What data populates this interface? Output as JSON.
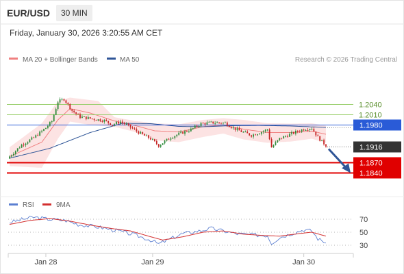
{
  "header": {
    "symbol": "EUR/USD",
    "timeframe": "30 MIN",
    "datetime": "Friday, January 30, 2026 3:20:55 AM CET"
  },
  "legend": {
    "ma20_label": "MA 20 + Bollinger Bands",
    "ma50_label": "MA 50",
    "attribution": "Research © 2026 Trading Central",
    "rsi_label": "RSI",
    "rsi_ma_label": "9MA"
  },
  "colors": {
    "up": "#2e8b3a",
    "down": "#c62828",
    "ma20": "#f08080",
    "band_fill": "#fbdada",
    "ma50": "#2f5597",
    "resistance": "#9bcf6e",
    "pivot": "#2a5bd7",
    "support": "#e00000",
    "price": "#333333",
    "arrow": "#2f5597",
    "rsi": "#5b7fd1",
    "rsi_ma": "#d32f2f"
  },
  "chart_data": [
    {
      "type": "candlestick",
      "title": "",
      "x_labels": [
        "Jan 28",
        "Jan 29",
        "Jan 30"
      ],
      "ylim": [
        1.1795,
        1.2145
      ],
      "current_price": 1.1916,
      "levels": [
        {
          "value": 1.204,
          "label": "1.2040",
          "kind": "resistance"
        },
        {
          "value": 1.201,
          "label": "1.2010",
          "kind": "resistance"
        },
        {
          "value": 1.198,
          "label": "1.1980",
          "kind": "pivot"
        },
        {
          "value": 1.1916,
          "label": "1.1916",
          "kind": "current"
        },
        {
          "value": 1.187,
          "label": "1.1870",
          "kind": "support"
        },
        {
          "value": 1.184,
          "label": "1.1840",
          "kind": "support"
        }
      ],
      "forecast_arrow": {
        "from": 1.1916,
        "to": 1.1844
      },
      "close_anchors": [
        [
          0,
          1.1888
        ],
        [
          6,
          1.1922
        ],
        [
          12,
          1.1943
        ],
        [
          18,
          1.1972
        ],
        [
          21,
          1.1991
        ],
        [
          24,
          1.2048
        ],
        [
          27,
          1.2056
        ],
        [
          31,
          1.2022
        ],
        [
          35,
          1.2004
        ],
        [
          41,
          1.1998
        ],
        [
          47,
          1.1993
        ],
        [
          51,
          1.1981
        ],
        [
          55,
          1.199
        ],
        [
          59,
          1.1977
        ],
        [
          65,
          1.1955
        ],
        [
          70,
          1.194
        ],
        [
          74,
          1.192
        ],
        [
          80,
          1.1944
        ],
        [
          84,
          1.1954
        ],
        [
          90,
          1.1967
        ],
        [
          95,
          1.1984
        ],
        [
          101,
          1.1987
        ],
        [
          107,
          1.1986
        ],
        [
          111,
          1.1971
        ],
        [
          115,
          1.1961
        ],
        [
          120,
          1.195
        ],
        [
          126,
          1.1962
        ],
        [
          128,
          1.1967
        ],
        [
          130,
          1.1915
        ],
        [
          134,
          1.194
        ],
        [
          140,
          1.1955
        ],
        [
          146,
          1.1968
        ],
        [
          150,
          1.1971
        ],
        [
          153,
          1.1944
        ],
        [
          157,
          1.192
        ]
      ],
      "ma20": [
        [
          0,
          1.1888
        ],
        [
          16,
          1.193
        ],
        [
          24,
          1.1995
        ],
        [
          30,
          1.2028
        ],
        [
          40,
          1.2015
        ],
        [
          52,
          1.1992
        ],
        [
          62,
          1.1979
        ],
        [
          72,
          1.1963
        ],
        [
          84,
          1.196
        ],
        [
          96,
          1.1975
        ],
        [
          106,
          1.198
        ],
        [
          116,
          1.1968
        ],
        [
          128,
          1.1958
        ],
        [
          140,
          1.1958
        ],
        [
          150,
          1.1962
        ],
        [
          157,
          1.1953
        ]
      ],
      "ma50": [
        [
          0,
          1.1883
        ],
        [
          20,
          1.1912
        ],
        [
          40,
          1.1958
        ],
        [
          56,
          1.1985
        ],
        [
          70,
          1.1984
        ],
        [
          84,
          1.1976
        ],
        [
          96,
          1.1975
        ],
        [
          110,
          1.1978
        ],
        [
          124,
          1.1979
        ],
        [
          140,
          1.1977
        ],
        [
          157,
          1.1973
        ]
      ],
      "band_upper": [
        [
          0,
          1.1915
        ],
        [
          16,
          1.1985
        ],
        [
          24,
          1.205
        ],
        [
          30,
          1.206
        ],
        [
          44,
          1.205
        ],
        [
          52,
          1.2003
        ],
        [
          62,
          1.1992
        ],
        [
          72,
          1.1985
        ],
        [
          84,
          1.1982
        ],
        [
          96,
          1.1995
        ],
        [
          106,
          1.2
        ],
        [
          116,
          1.1995
        ],
        [
          128,
          1.1985
        ],
        [
          140,
          1.1984
        ],
        [
          150,
          1.1985
        ],
        [
          157,
          1.1978
        ]
      ],
      "band_lower": [
        [
          0,
          1.186
        ],
        [
          16,
          1.1855
        ],
        [
          24,
          1.194
        ],
        [
          30,
          1.199
        ],
        [
          40,
          1.198
        ],
        [
          52,
          1.1975
        ],
        [
          62,
          1.196
        ],
        [
          72,
          1.1935
        ],
        [
          84,
          1.193
        ],
        [
          96,
          1.1945
        ],
        [
          106,
          1.1955
        ],
        [
          116,
          1.1938
        ],
        [
          128,
          1.1928
        ],
        [
          140,
          1.1932
        ],
        [
          150,
          1.194
        ],
        [
          157,
          1.1928
        ]
      ]
    },
    {
      "type": "line",
      "title": "RSI",
      "ylim": [
        25,
        80
      ],
      "yticks": [
        70,
        50,
        30
      ],
      "rsi": [
        [
          0,
          65
        ],
        [
          8,
          71
        ],
        [
          12,
          73
        ],
        [
          20,
          70
        ],
        [
          28,
          68
        ],
        [
          34,
          62
        ],
        [
          44,
          58
        ],
        [
          54,
          52
        ],
        [
          62,
          46
        ],
        [
          70,
          38
        ],
        [
          74,
          32
        ],
        [
          80,
          40
        ],
        [
          86,
          48
        ],
        [
          94,
          52
        ],
        [
          100,
          56
        ],
        [
          106,
          52
        ],
        [
          112,
          48
        ],
        [
          120,
          46
        ],
        [
          128,
          45
        ],
        [
          130,
          33
        ],
        [
          134,
          42
        ],
        [
          140,
          48
        ],
        [
          146,
          54
        ],
        [
          150,
          52
        ],
        [
          153,
          40
        ],
        [
          157,
          34
        ]
      ],
      "rsi_ma": [
        [
          0,
          62
        ],
        [
          10,
          68
        ],
        [
          20,
          71
        ],
        [
          30,
          67
        ],
        [
          40,
          61
        ],
        [
          50,
          56
        ],
        [
          60,
          52
        ],
        [
          70,
          43
        ],
        [
          76,
          38
        ],
        [
          86,
          43
        ],
        [
          96,
          50
        ],
        [
          106,
          52
        ],
        [
          116,
          47
        ],
        [
          126,
          45
        ],
        [
          134,
          44
        ],
        [
          144,
          48
        ],
        [
          150,
          50
        ],
        [
          157,
          44
        ]
      ]
    }
  ]
}
